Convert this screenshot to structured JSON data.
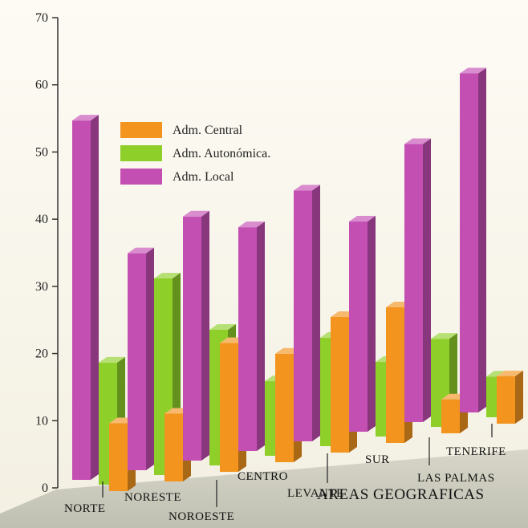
{
  "chart_data": {
    "type": "bar",
    "title": "",
    "xlabel": "AREAS GEOGRAFICAS",
    "ylabel": "",
    "ylim": [
      0,
      70
    ],
    "yticks": [
      0,
      10,
      20,
      30,
      40,
      50,
      60,
      70
    ],
    "grid": false,
    "legend_position": "top-left",
    "categories": [
      "NORTE",
      "NORESTE",
      "NOROESTE",
      "CENTRO",
      "LEVANTE",
      "SUR",
      "LAS PALMAS",
      "TENERIFE"
    ],
    "series": [
      {
        "name": "Adm. Central",
        "color": "#f2941e",
        "values": [
          10,
          10,
          19,
          16,
          20,
          20,
          5,
          7
        ]
      },
      {
        "name": "Adm. Autonómica.",
        "color": "#8fcf2a",
        "values": [
          18,
          29,
          20,
          11,
          16,
          11,
          13,
          6
        ]
      },
      {
        "name": "Adm. Local",
        "color": "#c44fb3",
        "values": [
          53,
          32,
          36,
          33,
          37,
          31,
          41,
          50
        ]
      }
    ]
  }
}
